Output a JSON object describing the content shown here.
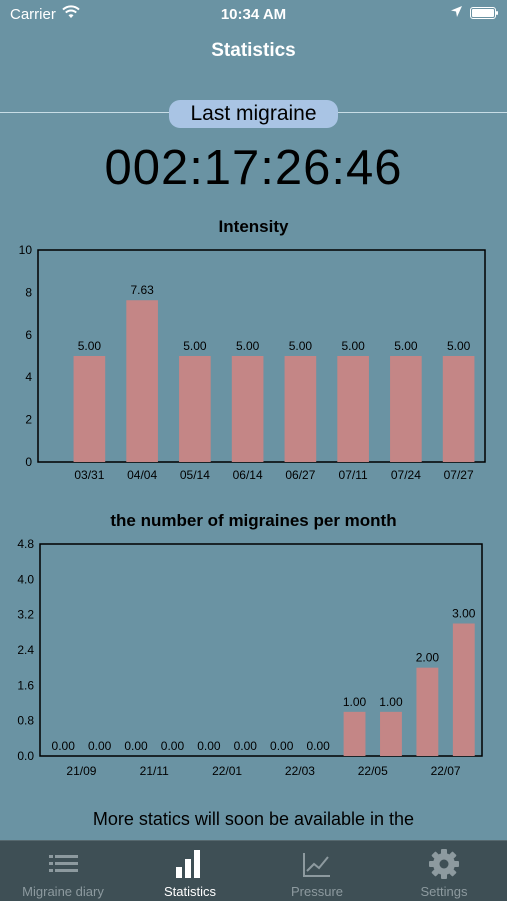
{
  "status_bar": {
    "carrier": "Carrier",
    "time": "10:34 AM"
  },
  "nav": {
    "title": "Statistics"
  },
  "last_migraine": {
    "label": "Last migraine",
    "counter": "002:17:26:46"
  },
  "chart_data": [
    {
      "type": "bar",
      "title": "Intensity",
      "categories": [
        "03/31",
        "04/04",
        "05/14",
        "06/14",
        "06/27",
        "07/11",
        "07/24",
        "07/27"
      ],
      "values": [
        5.0,
        7.63,
        5.0,
        5.0,
        5.0,
        5.0,
        5.0,
        5.0
      ],
      "value_labels": [
        "5.00",
        "7.63",
        "5.00",
        "5.00",
        "5.00",
        "5.00",
        "5.00",
        "5.00"
      ],
      "yticks": [
        "0",
        "2",
        "4",
        "6",
        "8",
        "10"
      ],
      "ylim": [
        0,
        10
      ],
      "bar_color": "#c48686",
      "grid": false
    },
    {
      "type": "bar",
      "title": "the number of migraines per month",
      "x_tick_labels": [
        "21/09",
        "21/11",
        "22/01",
        "22/03",
        "22/05",
        "22/07"
      ],
      "values": [
        0,
        0,
        0,
        0,
        0,
        0,
        0,
        0,
        1,
        1,
        2,
        3
      ],
      "value_labels": [
        "0.00",
        "0.00",
        "0.00",
        "0.00",
        "0.00",
        "0.00",
        "0.00",
        "0.00",
        "1.00",
        "1.00",
        "2.00",
        "3.00"
      ],
      "yticks": [
        "0.0",
        "0.8",
        "1.6",
        "2.4",
        "3.2",
        "4.0",
        "4.8"
      ],
      "ylim": [
        0,
        4.8
      ],
      "bar_color": "#c48686",
      "grid": false
    }
  ],
  "footer": {
    "text_line1": "More statics will soon be available in the"
  },
  "tabs": [
    {
      "label": "Migraine diary",
      "icon": "list-icon",
      "active": false
    },
    {
      "label": "Statistics",
      "icon": "bar-chart-icon",
      "active": true
    },
    {
      "label": "Pressure",
      "icon": "line-chart-icon",
      "active": false
    },
    {
      "label": "Settings",
      "icon": "gear-icon",
      "active": false
    }
  ],
  "colors": {
    "background": "#6a93a3",
    "tab_bar": "#3e4f55",
    "badge": "#a9c4e4",
    "bar": "#c48686"
  }
}
